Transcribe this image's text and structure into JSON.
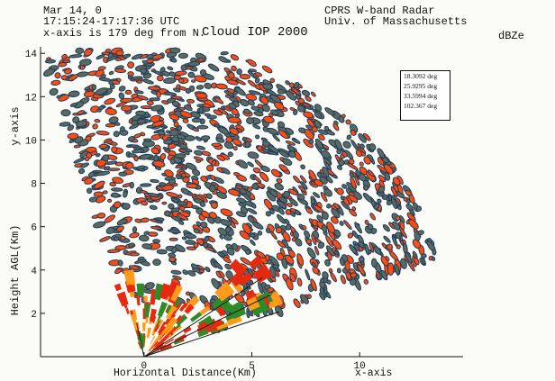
{
  "header": {
    "line1": "Mar 14, 0",
    "line2": "17:15:24-17:17:36 UTC",
    "line3": "x-axis is 179 deg from N.",
    "project": "Cloud IOP 2000",
    "radar": "CPRS W-band Radar",
    "institution": "Univ. of Massachusetts",
    "units": "dBZe"
  },
  "chart_data": {
    "type": "scatter",
    "xlabel": "Horizontal Distance(Km)",
    "xlabel_right": "x-axis",
    "ylabel_left": "Height AGL(Km)",
    "ylabel_top": "y-axis",
    "xlim": [
      -4.8,
      14.8
    ],
    "ylim": [
      0,
      14.3
    ],
    "x_ticks": [
      0,
      5,
      10
    ],
    "y_ticks": [
      2,
      4,
      6,
      8,
      10,
      12,
      14
    ],
    "grid": false,
    "sector": {
      "origin": [
        0,
        0
      ],
      "max_range_km": 14.5,
      "elevation_min_deg": 18.5,
      "elevation_max_deg": 109
    },
    "scan_lines_deg": [
      "18.3092 deg",
      "25.9295 deg",
      "33.5994 deg",
      "102.367 deg"
    ],
    "colors": {
      "cell_fill": "#ff4a10",
      "cell_edge": "#1e3c5a",
      "low_layer_red": "#e62a10",
      "low_layer_orange": "#ff9a1a",
      "low_layer_green": "#2f8a2a"
    }
  }
}
